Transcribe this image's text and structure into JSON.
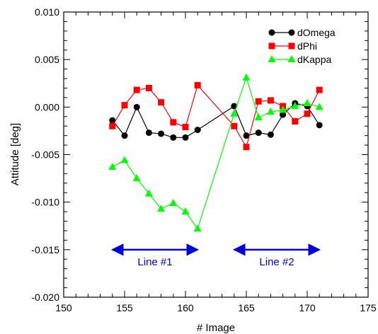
{
  "chart_data": {
    "type": "line",
    "title": "",
    "xlabel": "# Image",
    "ylabel": "Attitude [deg]",
    "xlim": [
      150,
      175
    ],
    "ylim": [
      -0.02,
      0.01
    ],
    "xticks": [
      150,
      155,
      160,
      165,
      170,
      175
    ],
    "xtick_labels": [
      "150",
      "155",
      "160",
      "165",
      "170",
      "175"
    ],
    "yticks": [
      -0.02,
      -0.015,
      -0.01,
      -0.005,
      0.0,
      0.005,
      0.01
    ],
    "ytick_labels": [
      "-0.020",
      "-0.015",
      "-0.010",
      "-0.005",
      "0.000",
      "0.005",
      "0.010"
    ],
    "grid": false,
    "legend_position": "top-right",
    "series": [
      {
        "name": "dOmega",
        "color": "#000000",
        "marker": "circle",
        "x": [
          154,
          155,
          156,
          157,
          158,
          159,
          160,
          161,
          164,
          165,
          166,
          167,
          168,
          169,
          170,
          171
        ],
        "y": [
          -0.0014,
          -0.003,
          0.0,
          -0.0027,
          -0.0028,
          -0.0032,
          -0.0032,
          -0.0024,
          0.0001,
          -0.003,
          -0.0027,
          -0.0029,
          -0.0008,
          0.0004,
          0.0001,
          -0.0019
        ]
      },
      {
        "name": "dPhi",
        "color": "#ff0000",
        "marker": "square",
        "x": [
          154,
          155,
          156,
          157,
          158,
          159,
          160,
          161,
          164,
          165,
          166,
          167,
          168,
          169,
          170,
          171
        ],
        "y": [
          -0.002,
          0.0002,
          0.0018,
          0.002,
          0.0005,
          -0.0016,
          -0.0021,
          0.0023,
          -0.002,
          -0.0042,
          0.0006,
          0.0007,
          0.0001,
          -0.0015,
          -0.0007,
          0.0018
        ]
      },
      {
        "name": "dKappa",
        "color": "#00ff00",
        "marker": "triangle",
        "x": [
          154,
          155,
          156,
          157,
          158,
          159,
          160,
          161,
          164,
          165,
          166,
          167,
          168,
          169,
          170,
          171
        ],
        "y": [
          -0.0063,
          -0.0056,
          -0.0075,
          -0.0091,
          -0.0107,
          -0.0101,
          -0.011,
          -0.0128,
          -0.0007,
          0.0031,
          -0.0011,
          -0.0005,
          -0.0003,
          0.0001,
          0.0004,
          0.0
        ]
      }
    ],
    "annotations": [
      {
        "label": "Line #1",
        "x_start": 154,
        "x_end": 161,
        "y": -0.015,
        "color": "#0000dd"
      },
      {
        "label": "Line #2",
        "x_start": 164,
        "x_end": 171,
        "y": -0.015,
        "color": "#0000dd"
      }
    ]
  }
}
